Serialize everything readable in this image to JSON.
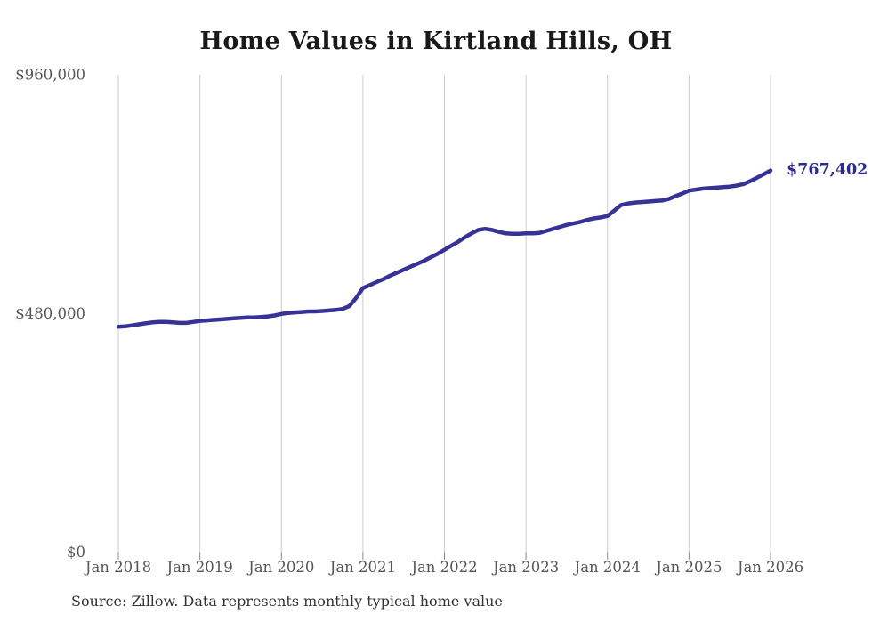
{
  "page": {
    "background": "#ffffff"
  },
  "chart": {
    "title": "Home Values in Kirtland Hills, OH",
    "source_note": "Source: Zillow. Data represents monthly typical home value",
    "end_label": "$767,402"
  },
  "colors": {
    "line": "#373296",
    "grid": "#cccccc",
    "tick": "#888888",
    "axis_text": "#555555",
    "title_text": "#1a1a1a",
    "end_label_text": "#2e2b8e",
    "source_text": "#333333",
    "background": "#ffffff"
  },
  "chart_data": {
    "type": "line",
    "title": "Home Values in Kirtland Hills, OH",
    "xlabel": "",
    "ylabel": "",
    "grid": "vertical-only",
    "legend": "none",
    "ylim": [
      0,
      960000
    ],
    "y_tick_values": [
      0,
      480000,
      960000
    ],
    "y_tick_labels": [
      "$0",
      "$480,000",
      "$960,000"
    ],
    "x_tick_labels": [
      "Jan 2018",
      "Jan 2019",
      "Jan 2020",
      "Jan 2021",
      "Jan 2022",
      "Jan 2023",
      "Jan 2024",
      "Jan 2025",
      "Jan 2026"
    ],
    "x_monthly_start": "Jan 2018",
    "x_monthly_end": "Jan 2026",
    "end_value": 767402,
    "end_label": "$767,402",
    "series": [
      {
        "name": "Monthly typical home value",
        "color": "#373296",
        "values": [
          453000,
          454000,
          456000,
          458000,
          460000,
          462000,
          463000,
          463000,
          462000,
          461000,
          461000,
          463000,
          465000,
          466000,
          467000,
          468000,
          469000,
          470000,
          471000,
          472000,
          472000,
          473000,
          474000,
          476000,
          479000,
          481000,
          482000,
          483000,
          484000,
          484000,
          485000,
          486000,
          487000,
          489000,
          495000,
          511000,
          531000,
          537000,
          543000,
          549000,
          556000,
          562000,
          568000,
          574000,
          580000,
          586000,
          593000,
          600000,
          608000,
          616000,
          624000,
          633000,
          641000,
          648000,
          650000,
          648000,
          644000,
          641000,
          640000,
          640000,
          641000,
          641000,
          642000,
          646000,
          650000,
          654000,
          658000,
          661000,
          664000,
          668000,
          671000,
          673000,
          676000,
          687000,
          698000,
          701000,
          703000,
          704000,
          705000,
          706000,
          707000,
          710000,
          716000,
          721000,
          727000,
          729000,
          731000,
          732000,
          733000,
          734000,
          735000,
          737000,
          740000,
          746000,
          753000,
          760000,
          767402
        ]
      }
    ]
  }
}
